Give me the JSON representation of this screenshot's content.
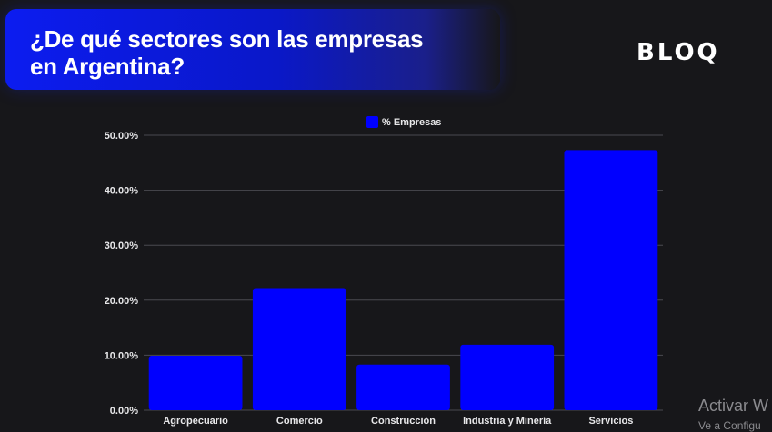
{
  "header": {
    "title_line1": "¿De qué sectores son las empresas",
    "title_line2": "en Argentina?",
    "brand": "BLOQ",
    "accent_color": "#0000ff"
  },
  "chart_data": {
    "type": "bar",
    "categories": [
      "Agropecuario",
      "Comercio",
      "Construcción",
      "Industria y Minería",
      "Servicios"
    ],
    "series": [
      {
        "name": "% Empresas",
        "values": [
          9.9,
          22.2,
          8.3,
          11.9,
          47.3
        ],
        "color": "#0000ff"
      }
    ],
    "ylim": [
      0,
      50
    ],
    "yticks": [
      "0.00%",
      "10.00%",
      "20.00%",
      "30.00%",
      "40.00%",
      "50.00%"
    ],
    "grid": true,
    "legend": "top-center"
  },
  "overlay": {
    "watermark": "Activar W",
    "watermark_sub": "Ve a Configu"
  }
}
